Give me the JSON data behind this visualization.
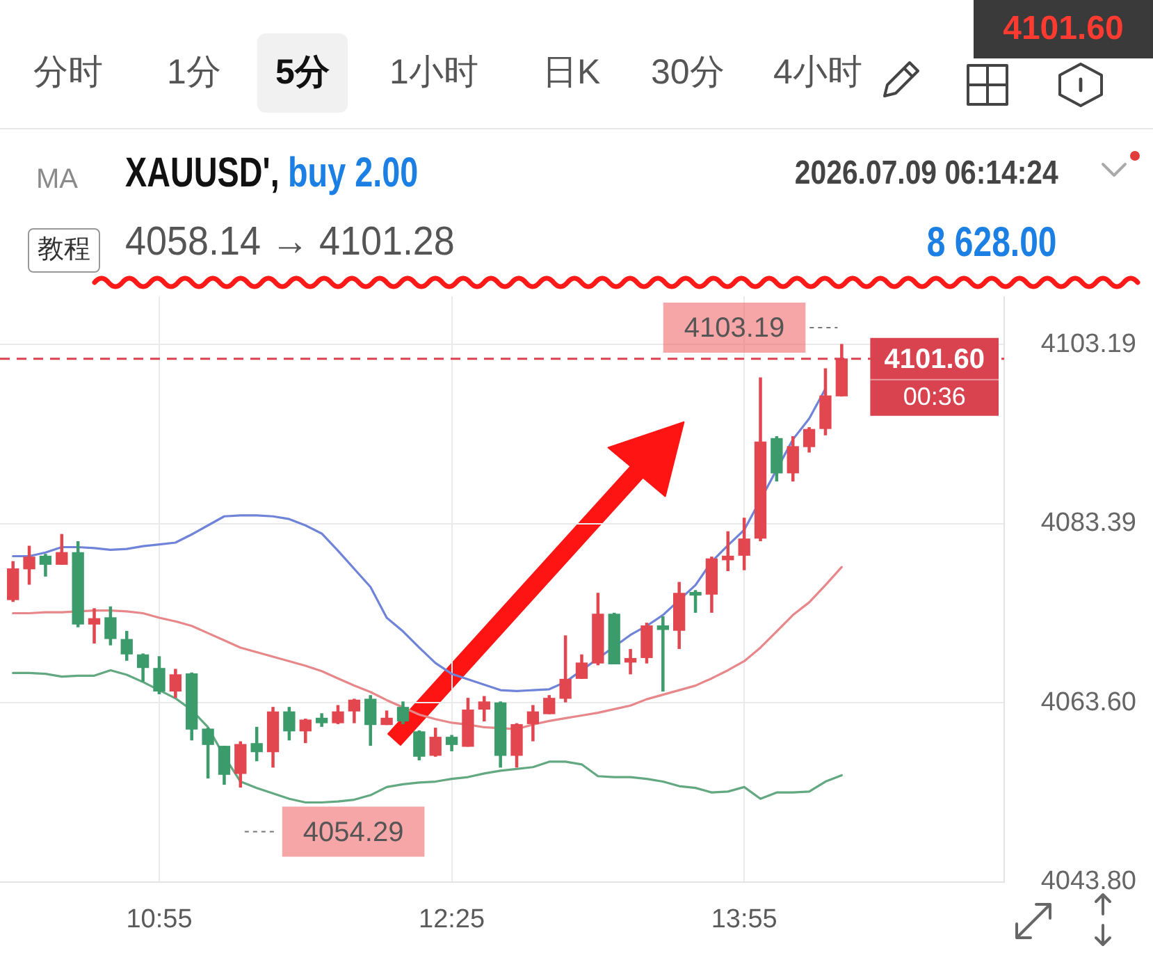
{
  "chart_data": {
    "type": "candlestick",
    "x": [
      10.1667,
      10.25,
      10.3333,
      10.4167,
      10.5,
      10.5833,
      10.6667,
      10.75,
      10.8333,
      10.9167,
      11,
      11.0833,
      11.1667,
      11.25,
      11.3333,
      11.4167,
      11.5,
      11.5833,
      11.6667,
      11.75,
      11.8333,
      11.9167,
      12,
      12.0833,
      12.1667,
      12.25,
      12.3333,
      12.4167,
      12.5,
      12.5833,
      12.6667,
      12.75,
      12.8333,
      12.9167,
      13,
      13.0833,
      13.1667,
      13.25,
      13.3333,
      13.4167,
      13.5,
      13.5833,
      13.6667,
      13.75,
      13.8333,
      13.9167,
      14,
      14.0833,
      14.1667,
      14.25,
      14.3333,
      14.4167
    ],
    "ohlc": [
      [
        4075.0,
        4079.2,
        4074.8,
        4078.4
      ],
      [
        4078.4,
        4080.9,
        4076.7,
        4079.7
      ],
      [
        4079.8,
        4080.0,
        4077.6,
        4078.9
      ],
      [
        4078.9,
        4082.2,
        4078.9,
        4080.2
      ],
      [
        4080.2,
        4081.4,
        4072.0,
        4072.3
      ],
      [
        4072.3,
        4074.0,
        4070.2,
        4072.9
      ],
      [
        4073.0,
        4074.2,
        4070.0,
        4070.7
      ],
      [
        4070.6,
        4071.5,
        4068.3,
        4069.0
      ],
      [
        4068.9,
        4069.0,
        4066.0,
        4067.5
      ],
      [
        4067.4,
        4068.7,
        4064.6,
        4064.9
      ],
      [
        4064.9,
        4067.3,
        4064.2,
        4066.7
      ],
      [
        4066.8,
        4066.9,
        4059.5,
        4060.7
      ],
      [
        4060.7,
        4060.8,
        4055.3,
        4059.0
      ],
      [
        4058.8,
        4058.8,
        4054.6,
        4055.7
      ],
      [
        4055.8,
        4059.3,
        4054.29,
        4059.0
      ],
      [
        4059.1,
        4060.9,
        4057.2,
        4058.2
      ],
      [
        4058.2,
        4063.1,
        4056.5,
        4062.6
      ],
      [
        4062.6,
        4063.1,
        4059.5,
        4060.5
      ],
      [
        4060.5,
        4061.8,
        4059.2,
        4061.7
      ],
      [
        4061.9,
        4062.4,
        4061.0,
        4061.4
      ],
      [
        4061.4,
        4063.3,
        4061.3,
        4062.6
      ],
      [
        4062.7,
        4064.0,
        4061.4,
        4063.9
      ],
      [
        4064.0,
        4064.4,
        4058.9,
        4061.2
      ],
      [
        4061.2,
        4062.7,
        4061.2,
        4061.9
      ],
      [
        4063.1,
        4063.7,
        4061.3,
        4061.6
      ],
      [
        4060.4,
        4060.5,
        4057.3,
        4057.7
      ],
      [
        4057.8,
        4060.8,
        4057.7,
        4059.8
      ],
      [
        4059.8,
        4060.0,
        4058.3,
        4059.0
      ],
      [
        4058.8,
        4064.1,
        4058.8,
        4062.8
      ],
      [
        4062.9,
        4064.3,
        4061.6,
        4063.7
      ],
      [
        4063.6,
        4063.7,
        4056.5,
        4057.8
      ],
      [
        4057.8,
        4061.3,
        4056.5,
        4061.2
      ],
      [
        4061.3,
        4063.3,
        4059.4,
        4062.6
      ],
      [
        4062.4,
        4064.4,
        4062.4,
        4064.1
      ],
      [
        4064.1,
        4071.0,
        4063.7,
        4066.2
      ],
      [
        4066.3,
        4068.9,
        4066.3,
        4068.0
      ],
      [
        4068.0,
        4075.7,
        4067.8,
        4073.4
      ],
      [
        4073.4,
        4073.5,
        4067.9,
        4067.9
      ],
      [
        4068.1,
        4069.5,
        4066.8,
        4068.5
      ],
      [
        4068.6,
        4072.4,
        4068.0,
        4072.1
      ],
      [
        4072.1,
        4073.1,
        4064.9,
        4071.7
      ],
      [
        4071.6,
        4076.9,
        4069.6,
        4075.7
      ],
      [
        4075.8,
        4076.0,
        4073.6,
        4075.5
      ],
      [
        4075.6,
        4079.7,
        4073.6,
        4079.5
      ],
      [
        4079.4,
        4082.5,
        4078.2,
        4079.8
      ],
      [
        4079.9,
        4084.0,
        4078.3,
        4081.7
      ],
      [
        4081.8,
        4099.5,
        4081.5,
        4092.4
      ],
      [
        4092.8,
        4093.0,
        4088.1,
        4089.0
      ],
      [
        4089.0,
        4093.0,
        4088.1,
        4091.9
      ],
      [
        4091.9,
        4094.0,
        4091.3,
        4093.8
      ],
      [
        4093.9,
        4100.5,
        4093.2,
        4097.5
      ],
      [
        4097.5,
        4103.19,
        4097.5,
        4101.6
      ]
    ],
    "colors": [
      "#e2464f",
      "#e2464f",
      "#3b9b6b",
      "#e2464f",
      "#3b9b6b",
      "#e2464f",
      "#3b9b6b",
      "#3b9b6b",
      "#3b9b6b",
      "#3b9b6b",
      "#e2464f",
      "#3b9b6b",
      "#3b9b6b",
      "#3b9b6b",
      "#e2464f",
      "#3b9b6b",
      "#e2464f",
      "#3b9b6b",
      "#e2464f",
      "#3b9b6b",
      "#e2464f",
      "#e2464f",
      "#3b9b6b",
      "#e2464f",
      "#3b9b6b",
      "#3b9b6b",
      "#e2464f",
      "#3b9b6b",
      "#e2464f",
      "#e2464f",
      "#3b9b6b",
      "#e2464f",
      "#e2464f",
      "#e2464f",
      "#e2464f",
      "#e2464f",
      "#e2464f",
      "#3b9b6b",
      "#e2464f",
      "#e2464f",
      "#3b9b6b",
      "#e2464f",
      "#3b9b6b",
      "#e2464f",
      "#e2464f",
      "#e2464f",
      "#e2464f",
      "#3b9b6b",
      "#e2464f",
      "#e2464f",
      "#e2464f",
      "#e2464f"
    ],
    "series": [
      {
        "type": "line",
        "color": "#6f84d9",
        "values": [
          4079.8,
          4079.8,
          4080.2,
          4080.8,
          4080.8,
          4080.7,
          4080.5,
          4080.6,
          4080.9,
          4081.1,
          4081.3,
          4082.2,
          4083.2,
          4084.2,
          4084.3,
          4084.3,
          4084.2,
          4083.9,
          4083.2,
          4082.3,
          4080.4,
          4078.4,
          4076.4,
          4073.0,
          4071.5,
          4069.7,
          4068.0,
          4066.8,
          4066.2,
          4065.6,
          4065.0,
          4064.9,
          4065.0,
          4065.1,
          4065.9,
          null,
          null,
          null,
          4071.1,
          4072.1,
          4073.3,
          null,
          4076.6,
          4079.2,
          4081.0,
          4082.7,
          null,
          null,
          4092.7,
          4095.0,
          4098.3,
          null
        ]
      },
      {
        "type": "line",
        "color": "#e8878a",
        "values": [
          4073.5,
          4073.5,
          4073.6,
          4073.6,
          null,
          4073.8,
          4073.8,
          4073.7,
          4073.5,
          4073.0,
          4072.6,
          4072.1,
          4071.3,
          4070.5,
          4069.7,
          4069.2,
          4068.7,
          4068.2,
          4067.7,
          4067.1,
          4066.3,
          4065.5,
          4064.8,
          4063.9,
          4063.1,
          4062.3,
          4061.8,
          4061.4,
          4061.2,
          4060.9,
          null,
          4060.7,
          4061.2,
          4061.6,
          4061.9,
          4062.2,
          4062.5,
          4062.9,
          4063.3,
          4064.0,
          4064.5,
          4065.0,
          4065.5,
          4066.3,
          4067.2,
          4068.2,
          4069.7,
          4071.5,
          4073.3,
          4074.7,
          4076.6,
          4078.6
        ]
      },
      {
        "type": "line",
        "color": "#62a880",
        "values": [
          4066.9,
          4066.9,
          4066.8,
          4066.5,
          4066.6,
          4066.6,
          4067.2,
          4066.7,
          4065.9,
          4065.0,
          4064.1,
          4062.8,
          4060.9,
          4057.7,
          4054.9,
          4054.2,
          4053.6,
          4053.0,
          4052.6,
          4052.6,
          4052.7,
          4052.9,
          4053.4,
          4054.3,
          4054.6,
          4054.8,
          4054.9,
          4055.2,
          4055.4,
          4055.8,
          4056.1,
          4056.3,
          4056.5,
          4057.1,
          4057.1,
          4056.8,
          4055.5,
          4055.4,
          4055.4,
          4055.2,
          4054.9,
          4054.4,
          4054.2,
          4053.7,
          4053.8,
          4054.3,
          4053.0,
          4053.7,
          4053.7,
          4053.8,
          4054.9,
          4055.6
        ]
      }
    ],
    "xlim": [
      10.1,
      15.25
    ],
    "xticks": [
      {
        "value": 10.9167,
        "label": "10:55"
      },
      {
        "value": 12.4167,
        "label": "12:25"
      },
      {
        "value": 13.9167,
        "label": "13:55"
      }
    ],
    "ylim": [
      4043.8,
      4108.5
    ],
    "yticks": [
      {
        "value": 4043.8,
        "label": "4043.80"
      },
      {
        "value": 4063.6,
        "label": "4063.60"
      },
      4083.39,
      4103.19
    ],
    "grid": true,
    "ref_lines": [
      {
        "axis": "y",
        "value": 4101.6,
        "label": "4101.60",
        "color": "#d9434f",
        "line_style": "dashed"
      }
    ],
    "annotations": [
      "分时",
      "1分",
      "5分",
      "1小时",
      "日K",
      "30分",
      "4小时",
      "4101.60",
      "MA",
      "XAUUSD',",
      "buy 2.00",
      "2026.07.09 06:14:24",
      "教程",
      "4058.14 → 4101.28",
      "8 628.00",
      {
        "text": "4103.19",
        "x": 14.4167,
        "y": 4103.19
      },
      "00:36",
      {
        "text": "4054.29",
        "x": 11.3333,
        "y": 4054.29
      }
    ]
  }
}
